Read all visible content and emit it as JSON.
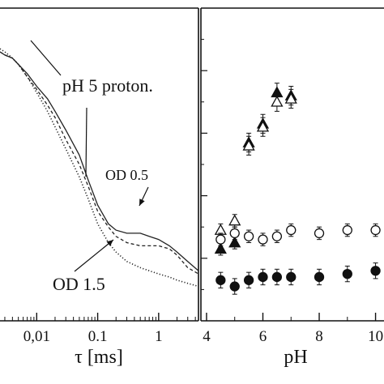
{
  "chart_data": [
    {
      "type": "line",
      "xscale": "log",
      "xlabel": "τ [ms]",
      "xticks": [
        {
          "value": 0.01,
          "label": "0,01"
        },
        {
          "value": 0.1,
          "label": "0.1"
        },
        {
          "value": 1,
          "label": "1"
        }
      ],
      "xlim": [
        0.0025,
        4.5
      ],
      "ylim": [
        0,
        1
      ],
      "annotations": [
        {
          "text": "pH 5 proton.",
          "size": "large"
        },
        {
          "text": "OD 0.5",
          "size": "small"
        },
        {
          "text": "OD 1.5",
          "size": "large"
        }
      ],
      "series": [
        {
          "style": "solid",
          "x": [
            0.0025,
            0.003,
            0.004,
            0.005,
            0.007,
            0.01,
            0.015,
            0.02,
            0.03,
            0.05,
            0.07,
            0.1,
            0.15,
            0.2,
            0.3,
            0.5,
            0.7,
            1,
            1.5,
            2,
            3,
            4.5
          ],
          "y": [
            0.86,
            0.85,
            0.84,
            0.82,
            0.79,
            0.75,
            0.71,
            0.67,
            0.61,
            0.53,
            0.45,
            0.37,
            0.31,
            0.29,
            0.28,
            0.28,
            0.27,
            0.26,
            0.24,
            0.22,
            0.19,
            0.16
          ]
        },
        {
          "style": "dashed",
          "x": [
            0.0025,
            0.003,
            0.004,
            0.005,
            0.007,
            0.01,
            0.015,
            0.02,
            0.03,
            0.05,
            0.07,
            0.1,
            0.15,
            0.2,
            0.3,
            0.5,
            0.7,
            1,
            1.5,
            2,
            3,
            4.5
          ],
          "y": [
            0.86,
            0.85,
            0.84,
            0.82,
            0.78,
            0.74,
            0.69,
            0.65,
            0.58,
            0.5,
            0.43,
            0.35,
            0.3,
            0.27,
            0.25,
            0.24,
            0.24,
            0.24,
            0.23,
            0.21,
            0.17,
            0.15
          ]
        },
        {
          "style": "dotted",
          "x": [
            0.0025,
            0.003,
            0.004,
            0.005,
            0.007,
            0.01,
            0.015,
            0.02,
            0.03,
            0.05,
            0.07,
            0.1,
            0.15,
            0.2,
            0.3,
            0.5,
            0.7,
            1,
            1.5,
            2,
            3,
            4.5
          ],
          "y": [
            0.87,
            0.86,
            0.84,
            0.82,
            0.78,
            0.73,
            0.67,
            0.62,
            0.55,
            0.46,
            0.39,
            0.31,
            0.25,
            0.22,
            0.19,
            0.17,
            0.16,
            0.15,
            0.14,
            0.13,
            0.12,
            0.11
          ]
        }
      ]
    },
    {
      "type": "scatter",
      "xlabel": "pH",
      "xlim": [
        3.8,
        10.3
      ],
      "xticks": [
        4,
        6,
        8,
        10
      ],
      "ylim": [
        0,
        1
      ],
      "series": [
        {
          "marker": "filled-triangle",
          "x": [
            4.5,
            5,
            5.5,
            6,
            6.5,
            7
          ],
          "y": [
            0.23,
            0.25,
            0.57,
            0.63,
            0.73,
            0.72
          ],
          "err": [
            0.02,
            0.02,
            0.03,
            0.03,
            0.03,
            0.03
          ]
        },
        {
          "marker": "open-triangle",
          "x": [
            4.5,
            5,
            5.5,
            6,
            6.5,
            7
          ],
          "y": [
            0.29,
            0.32,
            0.56,
            0.62,
            0.7,
            0.71
          ],
          "err": [
            0.02,
            0.02,
            0.03,
            0.03,
            0.03,
            0.03
          ]
        },
        {
          "marker": "open-circle",
          "x": [
            4.5,
            5,
            5.5,
            6,
            6.5,
            7,
            8,
            9,
            10
          ],
          "y": [
            0.26,
            0.28,
            0.27,
            0.26,
            0.27,
            0.29,
            0.28,
            0.29,
            0.29
          ],
          "err": [
            0.02,
            0.02,
            0.02,
            0.02,
            0.02,
            0.02,
            0.02,
            0.02,
            0.02
          ]
        },
        {
          "marker": "filled-circle",
          "x": [
            4.5,
            5,
            5.5,
            6,
            6.5,
            7,
            8,
            9,
            10
          ],
          "y": [
            0.13,
            0.11,
            0.13,
            0.14,
            0.14,
            0.14,
            0.14,
            0.15,
            0.16
          ],
          "err": [
            0.025,
            0.025,
            0.025,
            0.025,
            0.025,
            0.025,
            0.025,
            0.025,
            0.025
          ]
        }
      ]
    }
  ]
}
